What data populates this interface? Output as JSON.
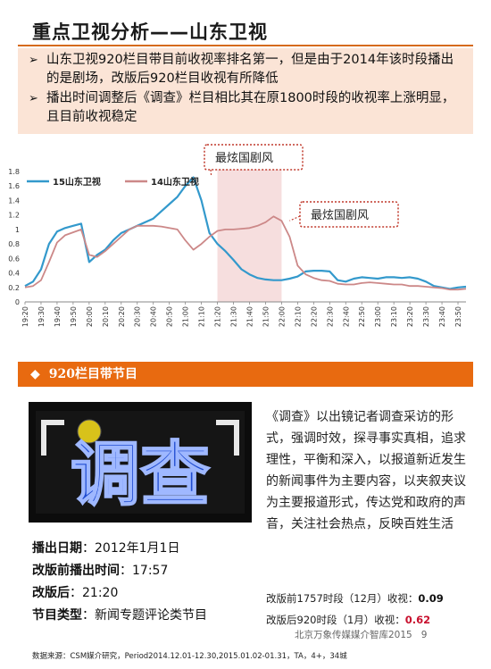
{
  "title": "重点卫视分析——山东卫视",
  "bullets": [
    "山东卫视920栏目带目前收视率排名第一，但是由于2014年该时段播出的是剧场，改版后920栏目收视有所降低",
    "播出时间调整后《调查》栏目相比其在原1800时段的收视率上涨明显，且目前收视稳定"
  ],
  "chart_data": {
    "type": "line",
    "x": [
      "19:20",
      "19:25",
      "19:30",
      "19:35",
      "19:40",
      "19:45",
      "19:50",
      "19:55",
      "20:00",
      "20:05",
      "20:10",
      "20:15",
      "20:20",
      "20:25",
      "20:30",
      "20:35",
      "20:40",
      "20:45",
      "20:50",
      "20:55",
      "21:00",
      "21:05",
      "21:10",
      "21:15",
      "21:20",
      "21:25",
      "21:30",
      "21:35",
      "21:40",
      "21:45",
      "21:50",
      "21:55",
      "22:00",
      "22:05",
      "22:10",
      "22:15",
      "22:20",
      "22:25",
      "22:30",
      "22:35",
      "22:40",
      "22:45",
      "22:50",
      "22:55",
      "23:00",
      "23:05",
      "23:10",
      "23:15",
      "23:20",
      "23:25",
      "23:30",
      "23:35",
      "23:40",
      "23:45",
      "23:50",
      "23:55"
    ],
    "tick_labels": [
      "19:20",
      "19:30",
      "19:40",
      "19:50",
      "20:00",
      "20:10",
      "20:20",
      "20:30",
      "20:40",
      "20:50",
      "21:00",
      "21:10",
      "21:20",
      "21:30",
      "21:40",
      "21:50",
      "22:00",
      "22:10",
      "22:20",
      "22:30",
      "22:40",
      "22:50",
      "23:00",
      "23:10",
      "23:20",
      "23:30",
      "23:40",
      "23:50"
    ],
    "ylim": [
      0,
      1.8
    ],
    "yticks": [
      "0",
      "0.2",
      "0.4",
      "0.6",
      "0.8",
      "1",
      "1.2",
      "1.4",
      "1.6",
      "1.8"
    ],
    "series": [
      {
        "name": "15山东卫视",
        "color": "#3399cc",
        "values": [
          0.22,
          0.28,
          0.45,
          0.8,
          0.97,
          1.02,
          1.05,
          1.08,
          0.55,
          0.65,
          0.72,
          0.85,
          0.95,
          1.0,
          1.05,
          1.1,
          1.15,
          1.25,
          1.35,
          1.45,
          1.6,
          1.72,
          1.4,
          0.95,
          0.8,
          0.7,
          0.58,
          0.45,
          0.38,
          0.33,
          0.31,
          0.3,
          0.3,
          0.32,
          0.35,
          0.42,
          0.43,
          0.43,
          0.42,
          0.3,
          0.28,
          0.32,
          0.34,
          0.33,
          0.32,
          0.34,
          0.34,
          0.33,
          0.34,
          0.32,
          0.28,
          0.22,
          0.2,
          0.18,
          0.2,
          0.21
        ]
      },
      {
        "name": "14山东卫视",
        "color": "#cc8888",
        "values": [
          0.2,
          0.22,
          0.3,
          0.55,
          0.82,
          0.92,
          0.96,
          1.0,
          0.65,
          0.62,
          0.7,
          0.8,
          0.9,
          1.0,
          1.05,
          1.05,
          1.05,
          1.04,
          1.02,
          1.0,
          0.85,
          0.72,
          0.8,
          0.9,
          0.98,
          1.0,
          1.0,
          1.01,
          1.02,
          1.05,
          1.1,
          1.18,
          1.12,
          0.9,
          0.5,
          0.38,
          0.33,
          0.3,
          0.29,
          0.25,
          0.24,
          0.24,
          0.26,
          0.27,
          0.26,
          0.25,
          0.24,
          0.24,
          0.22,
          0.22,
          0.21,
          0.2,
          0.19,
          0.17,
          0.17,
          0.18
        ]
      }
    ],
    "highlight_band": [
      "21:20",
      "22:00"
    ],
    "callouts": [
      "最炫国剧风",
      "最炫国剧风"
    ]
  },
  "banner": {
    "label": "920栏目带节目"
  },
  "logo_text": "调查",
  "description": "《调查》以出镜记者调查采访的形式，强调时效，探寻事实真相，追求理性，平衡和深入，以报道新近发生的新闻事件为主要内容，以夹叙夹议为主要报道形式，传达党和政府的声音，关注社会热点，反映百姓生活",
  "info": [
    {
      "key": "播出日期",
      "value": "：2012年1月1日"
    },
    {
      "key": "改版前播出时间",
      "value": "：17:57"
    },
    {
      "key": "改版后",
      "value": "：21:20"
    },
    {
      "key": "节目类型",
      "value": "：新闻专题评论类节目"
    }
  ],
  "ratings": [
    {
      "label": "改版前1757时段（12月）收视：",
      "value": "0.09"
    },
    {
      "label": "改版后920时段（1月）收视：",
      "value": "0.62"
    }
  ],
  "footer": {
    "org": "北京万象传媒媒介智库2015",
    "page": "9"
  },
  "source": "数据来源：CSM媒介研究，Period2014.12.01-12.30,2015.01.02-01.31，TA，4+，34城"
}
